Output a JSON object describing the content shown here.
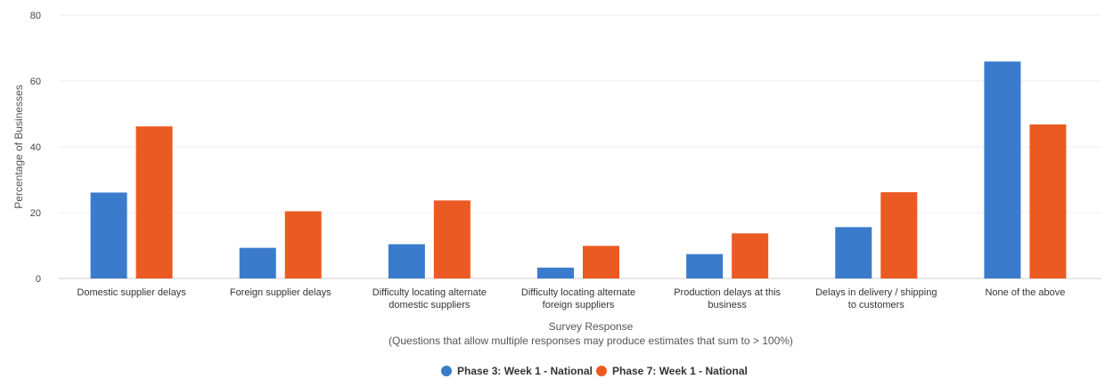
{
  "chart_data": {
    "type": "bar",
    "categories": [
      [
        "Domestic supplier delays"
      ],
      [
        "Foreign supplier delays"
      ],
      [
        "Difficulty locating alternate",
        "domestic suppliers"
      ],
      [
        "Difficulty locating alternate",
        "foreign suppliers"
      ],
      [
        "Production delays at this",
        "business"
      ],
      [
        "Delays in delivery / shipping",
        "to customers"
      ],
      [
        "None of the above"
      ]
    ],
    "series": [
      {
        "name": "Phase 3: Week 1 - National",
        "color": "#3a7bcc",
        "values": [
          26.1,
          9.3,
          10.4,
          3.3,
          7.4,
          15.6,
          65.9
        ]
      },
      {
        "name": "Phase 7: Week 1 - National",
        "color": "#eb5a22",
        "values": [
          46.2,
          20.4,
          23.7,
          9.9,
          13.7,
          26.2,
          46.8
        ]
      }
    ],
    "xlabel": "Survey Response",
    "xlabel_note": "(Questions that allow multiple responses may produce estimates that sum to > 100%)",
    "ylabel": "Percentage of Businesses",
    "ylim": [
      0,
      80
    ],
    "yticks": [
      0,
      20,
      40,
      60,
      80
    ],
    "grid": true,
    "legend_position": "bottom-center"
  }
}
